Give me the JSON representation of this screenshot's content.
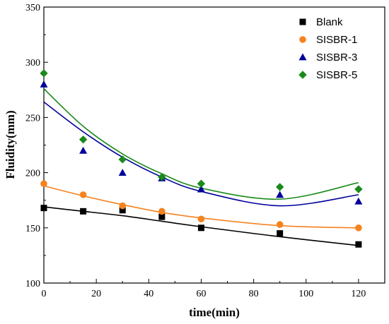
{
  "chart_data": {
    "type": "scatter",
    "xlabel": "time(min)",
    "ylabel": "Fluidity(mm)",
    "xlim": [
      0,
      130
    ],
    "ylim": [
      100,
      350
    ],
    "xticks": [
      0,
      20,
      40,
      60,
      80,
      100,
      120
    ],
    "yticks": [
      100,
      150,
      200,
      250,
      300,
      350
    ],
    "legend_position": "top-right",
    "x": [
      0,
      15,
      30,
      45,
      60,
      90,
      120
    ],
    "series": [
      {
        "name": "Blank",
        "marker": "square",
        "color": "#000000",
        "values": [
          168,
          165,
          166,
          160,
          150,
          145,
          135
        ],
        "fit_values": [
          169,
          165,
          161,
          156,
          151,
          142,
          134
        ]
      },
      {
        "name": "SISBR-1",
        "marker": "circle",
        "color": "#f5821f",
        "values": [
          190,
          180,
          170,
          165,
          158,
          153,
          150
        ],
        "fit_values": [
          188,
          179,
          171,
          164,
          159,
          152,
          150
        ]
      },
      {
        "name": "SISBR-3",
        "marker": "triangle",
        "color": "#00009b",
        "values": [
          280,
          220,
          200,
          195,
          185,
          180,
          174
        ],
        "fit_values": [
          264,
          237,
          214,
          196,
          183,
          170,
          180
        ]
      },
      {
        "name": "SISBR-5",
        "marker": "diamond",
        "color": "#1a8a1a",
        "values": [
          290,
          230,
          212,
          196,
          190,
          187,
          185
        ],
        "fit_values": [
          276,
          242,
          217,
          199,
          186,
          176,
          191
        ]
      }
    ]
  }
}
